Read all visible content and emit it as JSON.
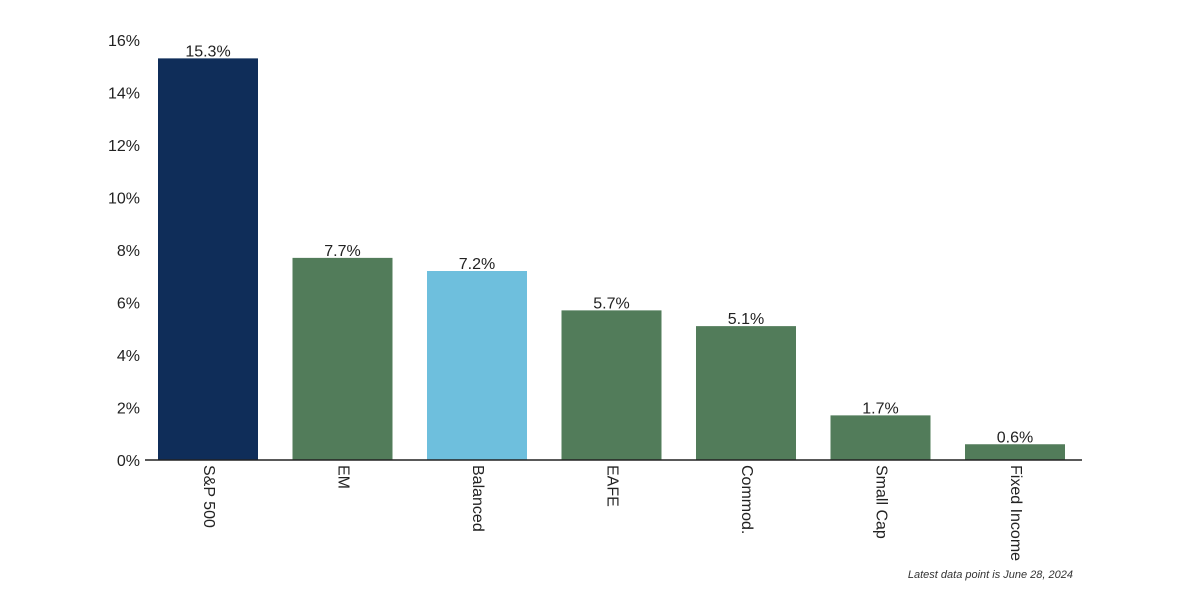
{
  "chart_data": {
    "type": "bar",
    "title": "",
    "xlabel": "",
    "ylabel": "",
    "categories": [
      "S&P 500",
      "EM",
      "Balanced",
      "EAFE",
      "Commod.",
      "Small Cap",
      "Fixed Income"
    ],
    "values": [
      15.3,
      7.7,
      7.2,
      5.7,
      5.1,
      1.7,
      0.6
    ],
    "data_labels": [
      "15.3%",
      "7.7%",
      "7.2%",
      "5.7%",
      "5.1%",
      "1.7%",
      "0.6%"
    ],
    "colors": [
      "#0f2d59",
      "#527c5a",
      "#6ebfdd",
      "#527c5a",
      "#527c5a",
      "#527c5a",
      "#527c5a"
    ],
    "ylim": [
      0,
      16
    ],
    "yticks": [
      0,
      2,
      4,
      6,
      8,
      10,
      12,
      14,
      16
    ],
    "ytick_labels": [
      "0%",
      "2%",
      "4%",
      "6%",
      "8%",
      "10%",
      "12%",
      "14%",
      "16%"
    ],
    "grid": false,
    "legend": "none"
  },
  "footnote": "Latest data point is June 28, 2024"
}
